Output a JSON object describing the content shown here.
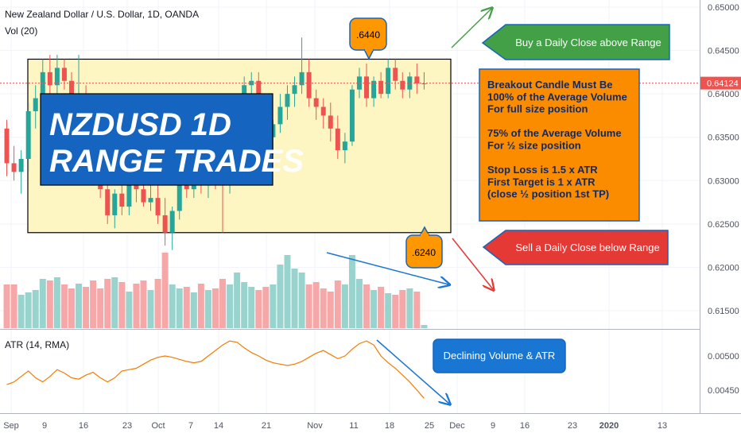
{
  "header": {
    "instrument": "New Zealand Dollar / U.S. Dollar, 1D, OANDA",
    "volume_label": "Vol (20)"
  },
  "atr_header": "ATR (14, RMA)",
  "price_axis": {
    "ticks": [
      "0.65000",
      "0.64500",
      "0.64000",
      "0.63500",
      "0.63000",
      "0.62500",
      "0.62000",
      "0.61500"
    ],
    "current_price": "0.64124"
  },
  "atr_axis": {
    "ticks": [
      "0.00500",
      "0.00450"
    ]
  },
  "time_axis": {
    "ticks": [
      "Sep",
      "9",
      "16",
      "23",
      "Oct",
      "7",
      "14",
      "21",
      "Nov",
      "11",
      "18",
      "25",
      "Dec",
      "9",
      "16",
      "23",
      "2020",
      "13"
    ]
  },
  "annotations": {
    "title_line1": "NZDUSD 1D",
    "title_line2": "RANGE TRADES",
    "top_callout": ".6440",
    "bottom_callout": ".6240",
    "buy_box": "Buy a Daily Close above Range",
    "sell_box": "Sell a Daily Close below Range",
    "rules": [
      "Breakout Candle Must Be",
      "100% of the Average Volume",
      "For full size position",
      "",
      "75% of the Average Volume",
      "For ½ size position",
      "",
      "Stop Loss is 1.5 x ATR",
      "First Target is 1 x ATR",
      "(close ½ position 1st TP)"
    ],
    "declining_box": "Declining Volume & ATR"
  },
  "colors": {
    "up": "#26a69a",
    "down": "#ef5350",
    "range_fill": "#fdf6c3",
    "title_box": "#1565c0",
    "buy_box": "#43a047",
    "sell_box": "#e53935",
    "rules_box": "#fb8c00",
    "callout": "#ff9800",
    "blue_box": "#1976d2",
    "atr_line": "#f57c00",
    "price_line": "#ef5350"
  },
  "chart_data": {
    "type": "candlestick",
    "price_range": [
      0.6125,
      0.6515
    ],
    "range_box": {
      "top": 0.644,
      "bottom": 0.624
    },
    "current_price": 0.64124,
    "candles": [
      {
        "o": 0.636,
        "h": 0.637,
        "l": 0.6305,
        "c": 0.632
      },
      {
        "o": 0.632,
        "h": 0.634,
        "l": 0.63,
        "c": 0.631
      },
      {
        "o": 0.631,
        "h": 0.6335,
        "l": 0.6285,
        "c": 0.6325
      },
      {
        "o": 0.6325,
        "h": 0.639,
        "l": 0.631,
        "c": 0.638
      },
      {
        "o": 0.638,
        "h": 0.641,
        "l": 0.636,
        "c": 0.6395
      },
      {
        "o": 0.6395,
        "h": 0.644,
        "l": 0.6385,
        "c": 0.6425
      },
      {
        "o": 0.6425,
        "h": 0.6445,
        "l": 0.64,
        "c": 0.641
      },
      {
        "o": 0.641,
        "h": 0.6445,
        "l": 0.6395,
        "c": 0.643
      },
      {
        "o": 0.643,
        "h": 0.644,
        "l": 0.6405,
        "c": 0.6415
      },
      {
        "o": 0.6415,
        "h": 0.6425,
        "l": 0.638,
        "c": 0.6395
      },
      {
        "o": 0.6395,
        "h": 0.6445,
        "l": 0.6385,
        "c": 0.64
      },
      {
        "o": 0.64,
        "h": 0.641,
        "l": 0.635,
        "c": 0.636
      },
      {
        "o": 0.636,
        "h": 0.637,
        "l": 0.632,
        "c": 0.633
      },
      {
        "o": 0.633,
        "h": 0.634,
        "l": 0.628,
        "c": 0.629
      },
      {
        "o": 0.629,
        "h": 0.63,
        "l": 0.625,
        "c": 0.626
      },
      {
        "o": 0.626,
        "h": 0.629,
        "l": 0.6245,
        "c": 0.6285
      },
      {
        "o": 0.6285,
        "h": 0.631,
        "l": 0.626,
        "c": 0.627
      },
      {
        "o": 0.627,
        "h": 0.63,
        "l": 0.626,
        "c": 0.6295
      },
      {
        "o": 0.6295,
        "h": 0.632,
        "l": 0.6275,
        "c": 0.629
      },
      {
        "o": 0.629,
        "h": 0.631,
        "l": 0.627,
        "c": 0.6275
      },
      {
        "o": 0.6275,
        "h": 0.63,
        "l": 0.6265,
        "c": 0.628
      },
      {
        "o": 0.628,
        "h": 0.6295,
        "l": 0.625,
        "c": 0.626
      },
      {
        "o": 0.626,
        "h": 0.628,
        "l": 0.6225,
        "c": 0.624
      },
      {
        "o": 0.624,
        "h": 0.627,
        "l": 0.622,
        "c": 0.6265
      },
      {
        "o": 0.6265,
        "h": 0.6305,
        "l": 0.6255,
        "c": 0.63
      },
      {
        "o": 0.63,
        "h": 0.632,
        "l": 0.628,
        "c": 0.629
      },
      {
        "o": 0.629,
        "h": 0.631,
        "l": 0.628,
        "c": 0.63
      },
      {
        "o": 0.63,
        "h": 0.632,
        "l": 0.6285,
        "c": 0.6295
      },
      {
        "o": 0.6295,
        "h": 0.6315,
        "l": 0.628,
        "c": 0.6305
      },
      {
        "o": 0.6305,
        "h": 0.633,
        "l": 0.629,
        "c": 0.63
      },
      {
        "o": 0.63,
        "h": 0.631,
        "l": 0.624,
        "c": 0.6295
      },
      {
        "o": 0.6295,
        "h": 0.632,
        "l": 0.6285,
        "c": 0.631
      },
      {
        "o": 0.631,
        "h": 0.64,
        "l": 0.6305,
        "c": 0.6395
      },
      {
        "o": 0.6395,
        "h": 0.642,
        "l": 0.638,
        "c": 0.641
      },
      {
        "o": 0.641,
        "h": 0.6425,
        "l": 0.6395,
        "c": 0.6415
      },
      {
        "o": 0.6415,
        "h": 0.6425,
        "l": 0.636,
        "c": 0.637
      },
      {
        "o": 0.637,
        "h": 0.6385,
        "l": 0.634,
        "c": 0.635
      },
      {
        "o": 0.635,
        "h": 0.637,
        "l": 0.633,
        "c": 0.6365
      },
      {
        "o": 0.6365,
        "h": 0.64,
        "l": 0.6355,
        "c": 0.6385
      },
      {
        "o": 0.6385,
        "h": 0.641,
        "l": 0.637,
        "c": 0.64
      },
      {
        "o": 0.64,
        "h": 0.642,
        "l": 0.6385,
        "c": 0.641
      },
      {
        "o": 0.641,
        "h": 0.6465,
        "l": 0.64,
        "c": 0.6425
      },
      {
        "o": 0.6425,
        "h": 0.644,
        "l": 0.6385,
        "c": 0.6395
      },
      {
        "o": 0.6395,
        "h": 0.6405,
        "l": 0.637,
        "c": 0.6385
      },
      {
        "o": 0.6385,
        "h": 0.6395,
        "l": 0.636,
        "c": 0.6375
      },
      {
        "o": 0.6375,
        "h": 0.639,
        "l": 0.6345,
        "c": 0.636
      },
      {
        "o": 0.636,
        "h": 0.6375,
        "l": 0.6325,
        "c": 0.6335
      },
      {
        "o": 0.6335,
        "h": 0.6355,
        "l": 0.632,
        "c": 0.6345
      },
      {
        "o": 0.6345,
        "h": 0.641,
        "l": 0.634,
        "c": 0.6405
      },
      {
        "o": 0.6405,
        "h": 0.643,
        "l": 0.6395,
        "c": 0.642
      },
      {
        "o": 0.642,
        "h": 0.6435,
        "l": 0.6385,
        "c": 0.6395
      },
      {
        "o": 0.6395,
        "h": 0.642,
        "l": 0.6385,
        "c": 0.6415
      },
      {
        "o": 0.6415,
        "h": 0.6425,
        "l": 0.6395,
        "c": 0.64
      },
      {
        "o": 0.64,
        "h": 0.644,
        "l": 0.6395,
        "c": 0.643
      },
      {
        "o": 0.643,
        "h": 0.644,
        "l": 0.6405,
        "c": 0.6415
      },
      {
        "o": 0.6415,
        "h": 0.6425,
        "l": 0.6395,
        "c": 0.6405
      },
      {
        "o": 0.6405,
        "h": 0.6425,
        "l": 0.6395,
        "c": 0.642
      },
      {
        "o": 0.642,
        "h": 0.6435,
        "l": 0.64,
        "c": 0.6412
      },
      {
        "o": 0.6412,
        "h": 0.6425,
        "l": 0.6405,
        "c": 0.6412
      }
    ],
    "volume": [
      0.55,
      0.55,
      0.42,
      0.45,
      0.48,
      0.62,
      0.6,
      0.64,
      0.55,
      0.5,
      0.56,
      0.52,
      0.6,
      0.5,
      0.62,
      0.64,
      0.58,
      0.46,
      0.56,
      0.6,
      0.48,
      0.62,
      0.95,
      0.55,
      0.5,
      0.52,
      0.45,
      0.56,
      0.48,
      0.5,
      0.62,
      0.55,
      0.7,
      0.58,
      0.52,
      0.48,
      0.52,
      0.55,
      0.8,
      0.92,
      0.75,
      0.7,
      0.55,
      0.58,
      0.5,
      0.46,
      0.6,
      0.55,
      0.92,
      0.62,
      0.55,
      0.48,
      0.52,
      0.44,
      0.42,
      0.48,
      0.5,
      0.46,
      0.04
    ],
    "atr": [
      0.00458,
      0.00462,
      0.0047,
      0.00478,
      0.00468,
      0.00462,
      0.0047,
      0.0048,
      0.00475,
      0.00468,
      0.00466,
      0.00472,
      0.00476,
      0.00468,
      0.00462,
      0.00468,
      0.00478,
      0.0048,
      0.00482,
      0.00488,
      0.00494,
      0.00498,
      0.005,
      0.00498,
      0.00495,
      0.00492,
      0.0049,
      0.00492,
      0.005,
      0.00508,
      0.00516,
      0.00522,
      0.0052,
      0.00512,
      0.00505,
      0.005,
      0.00494,
      0.0049,
      0.00488,
      0.00486,
      0.00488,
      0.00492,
      0.00498,
      0.00504,
      0.00508,
      0.00502,
      0.00496,
      0.005,
      0.0051,
      0.00518,
      0.00522,
      0.00516,
      0.005,
      0.0049,
      0.00482,
      0.00472,
      0.00462,
      0.0045,
      0.00438
    ],
    "atr_range": [
      0.0042,
      0.0054
    ]
  }
}
